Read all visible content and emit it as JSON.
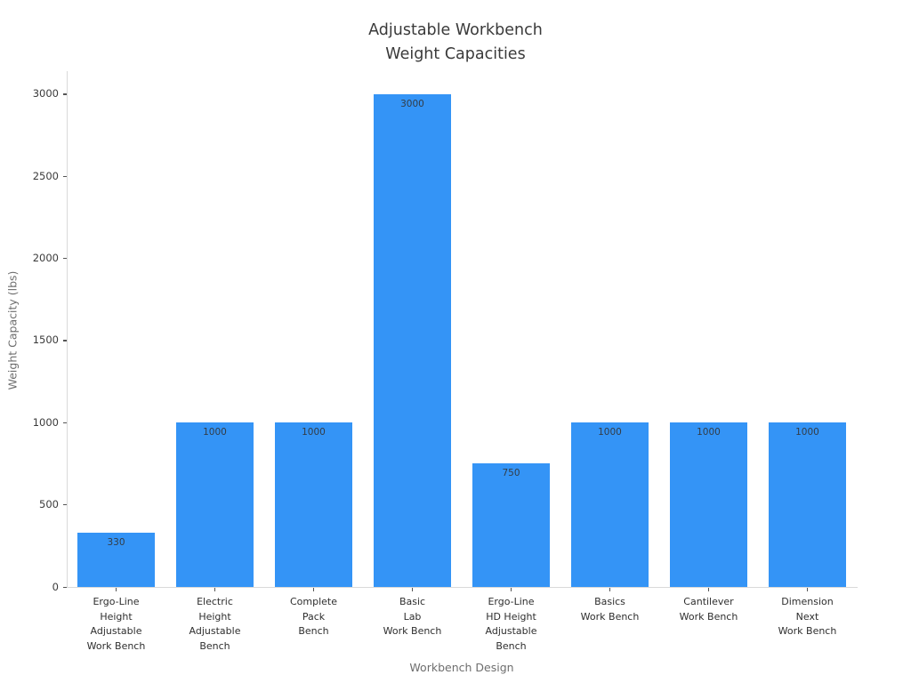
{
  "page": {
    "background": "#ffffff"
  },
  "chart_data": {
    "type": "bar",
    "title": "Adjustable Workbench\nWeight Capacities",
    "xlabel": "Workbench Design",
    "ylabel": "Weight Capacity (lbs)",
    "categories": [
      "Ergo-Line\nHeight\nAdjustable\nWork Bench",
      "Electric\nHeight\nAdjustable\nBench",
      "Complete\nPack\nBench",
      "Basic\nLab\nWork Bench",
      "Ergo-Line\nHD Height\nAdjustable\nBench",
      "Basics\nWork Bench",
      "Cantilever\nWork Bench",
      "Dimension\nNext\nWork Bench"
    ],
    "values": [
      330,
      1000,
      1000,
      3000,
      750,
      1000,
      1000,
      1000
    ],
    "bar_labels": [
      "330",
      "1000",
      "1000",
      "3000",
      "750",
      "1000",
      "1000",
      "1000"
    ],
    "yticks": [
      0,
      500,
      1000,
      1500,
      2000,
      2500,
      3000
    ],
    "ylim": [
      0,
      3140
    ],
    "grid": false,
    "legend": null,
    "colors": {
      "bar": "#3494F6",
      "title": "#3a3a3a",
      "tick_label": "#3b3b3b",
      "axis_label": "#6e6e6e",
      "spine": "#d9d9d9",
      "tick_mark": "#555555",
      "value_label": "#333c45"
    }
  }
}
